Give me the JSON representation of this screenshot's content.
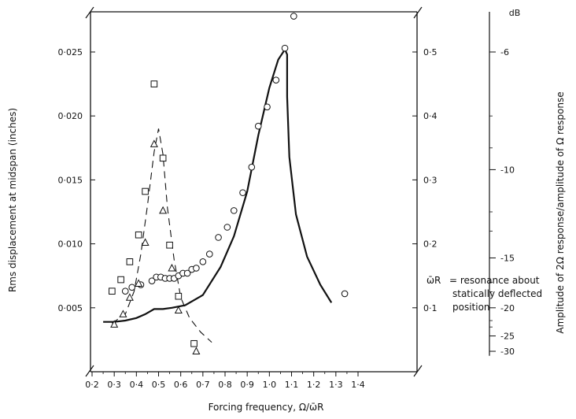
{
  "chart_data": {
    "type": "line",
    "xlabel": "Forcing frequency, Ω/ω̄R",
    "ylabel_left": "Rms displacement at midspan (inches)",
    "ylabel_right": "Amplitude of 2Ω response/amplitude of Ω response",
    "db_title": "dB",
    "xlim": [
      0.2,
      1.45
    ],
    "ylim_left": [
      0.0,
      0.0287
    ],
    "ylim_right": [
      0.0,
      0.574
    ],
    "x_ticks": [
      "0·2",
      "0·3",
      "0·4",
      "0·5",
      "0·6",
      "0·7",
      "0·8",
      "0·9",
      "1·0",
      "1·1",
      "1·2",
      "1·3",
      "1·4"
    ],
    "x_tick_values": [
      0.2,
      0.3,
      0.4,
      0.5,
      0.6,
      0.7,
      0.8,
      0.9,
      1.0,
      1.1,
      1.2,
      1.3,
      1.4
    ],
    "y_left_ticks": [
      "0·005",
      "0·010",
      "0·015",
      "0·020",
      "0·025"
    ],
    "y_left_tick_values": [
      0.005,
      0.01,
      0.015,
      0.02,
      0.025
    ],
    "y_right_ticks": [
      "0·1",
      "0·2",
      "0·3",
      "0·4",
      "0·5"
    ],
    "y_right_tick_values": [
      0.1,
      0.2,
      0.3,
      0.4,
      0.5
    ],
    "db_ticks": [
      "-6",
      "-10",
      "-15",
      "-20",
      "-25",
      "-30"
    ],
    "db_tick_values": [
      0.5,
      0.316,
      0.178,
      0.1,
      0.056,
      0.032
    ],
    "annotation": {
      "symbol": "ω̄R",
      "lines": [
        "= resonance about",
        "statically deflected",
        "position"
      ]
    },
    "series": [
      {
        "style": "solid",
        "points": [
          [
            0.25,
            0.0039
          ],
          [
            0.3,
            0.0039
          ],
          [
            0.35,
            0.004
          ],
          [
            0.4,
            0.0042
          ],
          [
            0.44,
            0.0045
          ],
          [
            0.48,
            0.0049
          ],
          [
            0.52,
            0.0049
          ],
          [
            0.56,
            0.005
          ],
          [
            0.62,
            0.0052
          ],
          [
            0.7,
            0.006
          ],
          [
            0.78,
            0.0082
          ],
          [
            0.84,
            0.0106
          ],
          [
            0.9,
            0.0141
          ],
          [
            0.95,
            0.0185
          ],
          [
            1.0,
            0.0222
          ],
          [
            1.04,
            0.0244
          ],
          [
            1.07,
            0.0252
          ],
          [
            1.08,
            0.0248
          ],
          [
            1.08,
            0.0215
          ],
          [
            1.09,
            0.0168
          ],
          [
            1.12,
            0.0123
          ],
          [
            1.17,
            0.009
          ],
          [
            1.23,
            0.0068
          ],
          [
            1.28,
            0.0054
          ]
        ]
      },
      {
        "style": "dashed",
        "points": [
          [
            0.29,
            0.0038
          ],
          [
            0.35,
            0.0045
          ],
          [
            0.39,
            0.0063
          ],
          [
            0.42,
            0.0092
          ],
          [
            0.45,
            0.013
          ],
          [
            0.48,
            0.0172
          ],
          [
            0.5,
            0.019
          ],
          [
            0.52,
            0.017
          ],
          [
            0.54,
            0.0128
          ],
          [
            0.57,
            0.0088
          ],
          [
            0.6,
            0.0058
          ],
          [
            0.64,
            0.0042
          ],
          [
            0.69,
            0.0031
          ],
          [
            0.74,
            0.0023
          ]
        ]
      },
      {
        "marker": "circle",
        "points": [
          [
            0.35,
            0.0063
          ],
          [
            0.38,
            0.0066
          ],
          [
            0.42,
            0.0068
          ],
          [
            0.47,
            0.0071
          ],
          [
            0.49,
            0.0074
          ],
          [
            0.51,
            0.0074
          ],
          [
            0.53,
            0.0073
          ],
          [
            0.55,
            0.0073
          ],
          [
            0.57,
            0.0073
          ],
          [
            0.59,
            0.0075
          ],
          [
            0.61,
            0.0077
          ],
          [
            0.63,
            0.0077
          ],
          [
            0.65,
            0.008
          ],
          [
            0.67,
            0.0081
          ],
          [
            0.7,
            0.0086
          ],
          [
            0.73,
            0.0092
          ],
          [
            0.77,
            0.0105
          ],
          [
            0.81,
            0.0113
          ],
          [
            0.84,
            0.0126
          ],
          [
            0.88,
            0.014
          ],
          [
            0.92,
            0.016
          ],
          [
            0.95,
            0.0192
          ],
          [
            0.99,
            0.0207
          ],
          [
            1.03,
            0.0228
          ],
          [
            1.07,
            0.0253
          ],
          [
            1.11,
            0.0278
          ],
          [
            1.34,
            0.0061
          ]
        ]
      },
      {
        "marker": "square",
        "points": [
          [
            0.29,
            0.0063
          ],
          [
            0.33,
            0.0072
          ],
          [
            0.37,
            0.0086
          ],
          [
            0.41,
            0.0107
          ],
          [
            0.44,
            0.0141
          ],
          [
            0.48,
            0.0225
          ],
          [
            0.52,
            0.0167
          ],
          [
            0.55,
            0.0099
          ],
          [
            0.59,
            0.0059
          ],
          [
            0.66,
            0.0022
          ]
        ]
      },
      {
        "marker": "triangle",
        "points": [
          [
            0.3,
            0.0037
          ],
          [
            0.34,
            0.0045
          ],
          [
            0.37,
            0.0058
          ],
          [
            0.41,
            0.0069
          ],
          [
            0.44,
            0.0101
          ],
          [
            0.48,
            0.0178
          ],
          [
            0.52,
            0.0126
          ],
          [
            0.56,
            0.0081
          ],
          [
            0.59,
            0.0048
          ],
          [
            0.67,
            0.0016
          ]
        ]
      }
    ]
  }
}
